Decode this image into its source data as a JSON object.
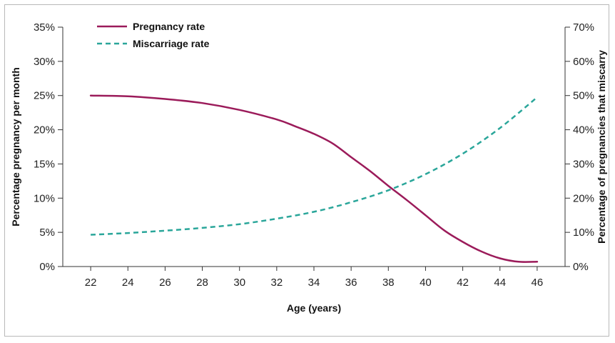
{
  "chart_data": {
    "type": "line",
    "xlabel": "Age (years)",
    "ylabel_left": "Percentage pregnancy per month",
    "ylabel_right": "Percentage of pregnancies that miscarry",
    "x_ticks": [
      22,
      24,
      26,
      28,
      30,
      32,
      34,
      36,
      38,
      40,
      42,
      44,
      46
    ],
    "x_tick_labels": [
      "22",
      "24",
      "26",
      "28",
      "30",
      "32",
      "34",
      "36",
      "38",
      "40",
      "42",
      "44",
      "46"
    ],
    "xlim": [
      20.5,
      47.5
    ],
    "ylim_left": [
      0,
      35
    ],
    "ylim_right": [
      0,
      70
    ],
    "y_left_ticks": [
      0,
      5,
      10,
      15,
      20,
      25,
      30,
      35
    ],
    "y_left_tick_labels": [
      "0%",
      "5%",
      "10%",
      "15%",
      "20%",
      "25%",
      "30%",
      "35%"
    ],
    "y_right_ticks": [
      0,
      10,
      20,
      30,
      40,
      50,
      60,
      70
    ],
    "y_right_tick_labels": [
      "0%",
      "10%",
      "20%",
      "30%",
      "40%",
      "50%",
      "60%",
      "70%"
    ],
    "legend_position": "top-left",
    "grid": false,
    "series": [
      {
        "name": "Pregnancy rate",
        "axis": "left",
        "style": "solid",
        "color": "#9b1b5a",
        "x": [
          22,
          24,
          26,
          28,
          30,
          32,
          33,
          34,
          35,
          36,
          37,
          38,
          39,
          40,
          41,
          42,
          43,
          44,
          45,
          46
        ],
        "y": [
          25,
          24.9,
          24.5,
          23.9,
          22.9,
          21.5,
          20.5,
          19.4,
          18,
          16,
          14,
          11.8,
          9.7,
          7.5,
          5.3,
          3.6,
          2.2,
          1.2,
          0.7,
          0.7
        ]
      },
      {
        "name": "Miscarriage rate",
        "axis": "right",
        "style": "dashed",
        "color": "#2aa69a",
        "x": [
          22,
          24,
          26,
          28,
          30,
          32,
          34,
          36,
          38,
          40,
          42,
          44,
          46
        ],
        "y": [
          9.3,
          9.8,
          10.5,
          11.3,
          12.4,
          14,
          16,
          18.8,
          22.3,
          27,
          33,
          40.5,
          49.5
        ]
      }
    ]
  }
}
